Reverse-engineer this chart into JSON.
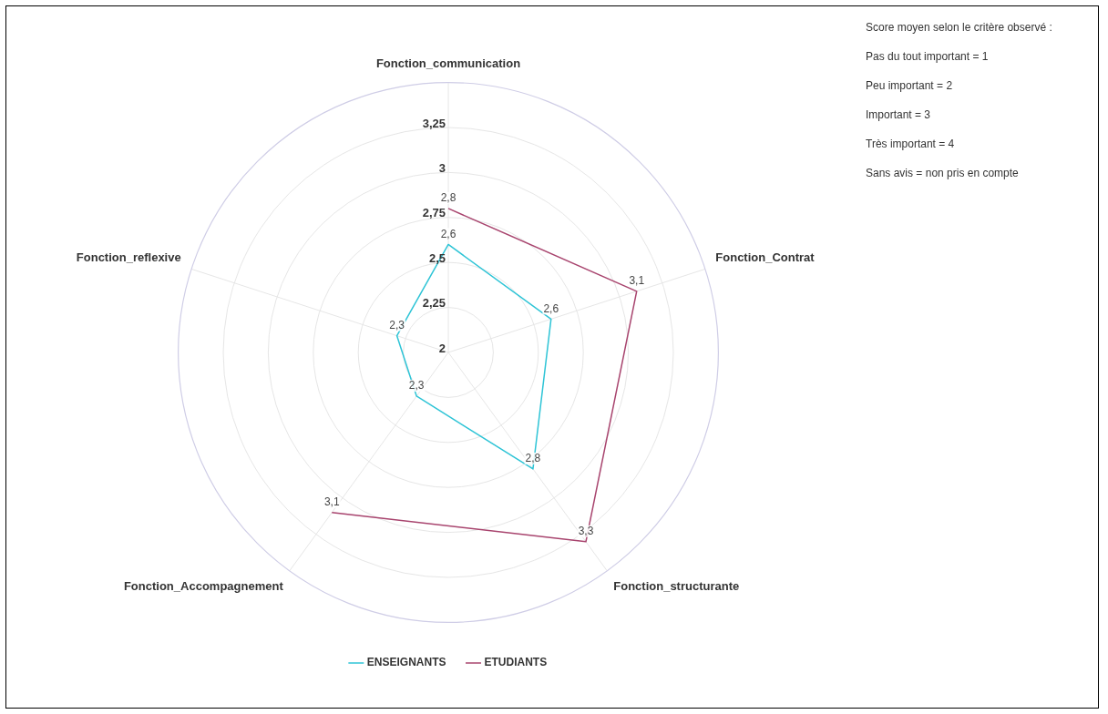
{
  "chart_data": {
    "type": "radar",
    "categories": [
      "Fonction_communication",
      "Fonction_Contrat",
      "Fonction_structurante",
      "Fonction_Accompagnement",
      "Fonction_reflexive"
    ],
    "series": [
      {
        "name": "ENSEIGNANTS",
        "color": "#2ec4d6",
        "values": [
          2.6,
          2.6,
          2.8,
          2.3,
          2.3
        ],
        "value_labels": [
          "2,6",
          "2,6",
          "2,8",
          "2,3",
          "2,3"
        ]
      },
      {
        "name": "ETUDIANTS",
        "color": "#a8446e",
        "values": [
          2.8,
          3.1,
          3.3,
          3.1,
          null
        ],
        "value_labels": [
          "2,8",
          "3,1",
          "3,3",
          "3,1",
          null
        ]
      }
    ],
    "ylim": [
      2,
      3.5
    ],
    "yticks": [
      {
        "value": 2,
        "label": "2"
      },
      {
        "value": 2.25,
        "label": "2,25"
      },
      {
        "value": 2.5,
        "label": "2,5"
      },
      {
        "value": 2.75,
        "label": "2,75"
      },
      {
        "value": 3,
        "label": "3"
      },
      {
        "value": 3.25,
        "label": "3,25"
      }
    ],
    "grid": true,
    "legend": "bottom",
    "marker": "none",
    "annotations": [
      "Score moyen selon le critère observé :",
      "Pas du tout important = 1",
      "Peu important = 2",
      "Important = 3",
      "Très important = 4",
      "Sans avis = non pris en compte"
    ]
  }
}
